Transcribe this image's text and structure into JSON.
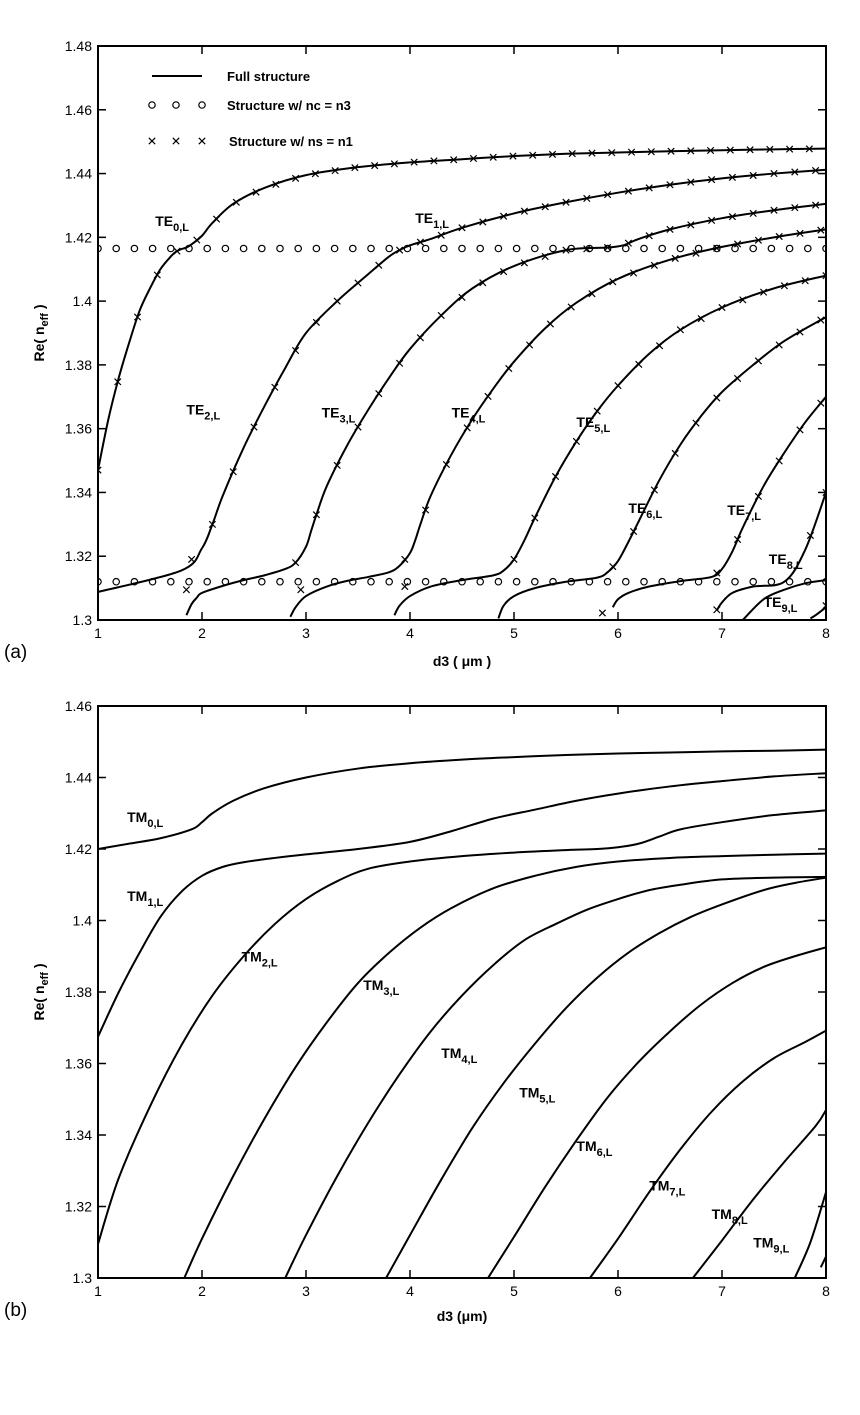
{
  "chart_data": [
    {
      "panel": "(a)",
      "type": "line",
      "xlabel": "d3 ( μm )",
      "ylabel": "Re( n",
      "ylabel_sub": "eff",
      "ylabel_close": " )",
      "xlim": [
        1,
        8
      ],
      "ylim": [
        1.3,
        1.48
      ],
      "xticks": [
        1,
        2,
        3,
        4,
        5,
        6,
        7,
        8
      ],
      "xtick_labels": [
        "1",
        "2",
        "3",
        "4",
        "5",
        "6",
        "7",
        "8"
      ],
      "yticks": [
        1.3,
        1.32,
        1.34,
        1.36,
        1.38,
        1.4,
        1.42,
        1.44,
        1.46,
        1.48
      ],
      "ytick_labels": [
        "1.3",
        "1.32",
        "1.34",
        "1.36",
        "1.38",
        "1.4",
        "1.42",
        "1.44",
        "1.46",
        "1.48"
      ],
      "legend": {
        "placement": "top-left",
        "entries": [
          {
            "label": "Full structure",
            "marker": "line"
          },
          {
            "label": "Structure w/ nc = n3",
            "marker": "circle"
          },
          {
            "label": "Structure w/ ns = n1",
            "marker": "cross"
          }
        ]
      },
      "mode_labels": [
        {
          "base": "TE",
          "sub": "0,L",
          "x": 1.55,
          "y": 1.4235
        },
        {
          "base": "TE",
          "sub": "1,L",
          "x": 4.05,
          "y": 1.4245
        },
        {
          "base": "TE",
          "sub": "2,L",
          "x": 1.85,
          "y": 1.3645
        },
        {
          "base": "TE",
          "sub": "3,L",
          "x": 3.15,
          "y": 1.3635
        },
        {
          "base": "TE",
          "sub": "4,L",
          "x": 4.4,
          "y": 1.3635
        },
        {
          "base": "TE",
          "sub": "5,L",
          "x": 5.6,
          "y": 1.3605
        },
        {
          "base": "TE",
          "sub": "6,L",
          "x": 6.1,
          "y": 1.3335
        },
        {
          "base": "TE",
          "sub": "7,L",
          "x": 7.05,
          "y": 1.333
        },
        {
          "base": "TE",
          "sub": "8,L",
          "x": 7.45,
          "y": 1.3175
        },
        {
          "base": "TE",
          "sub": "9,L",
          "x": 7.4,
          "y": 1.304
        }
      ],
      "series": [
        {
          "x": [
            1,
            1.1,
            1.2,
            1.3,
            1.4,
            1.5,
            1.6,
            1.7,
            1.75,
            1.8,
            1.85,
            1.9,
            2.0,
            2.1,
            2.3,
            2.6,
            3,
            3.5,
            4,
            4.5,
            5,
            5.5,
            6,
            6.5,
            7,
            7.5,
            8
          ],
          "y": [
            1.347,
            1.363,
            1.376,
            1.387,
            1.397,
            1.404,
            1.41,
            1.414,
            1.4155,
            1.4163,
            1.4168,
            1.4178,
            1.4205,
            1.4245,
            1.4305,
            1.4355,
            1.4395,
            1.442,
            1.4435,
            1.4445,
            1.4455,
            1.4462,
            1.4466,
            1.447,
            1.4473,
            1.4476,
            1.4478
          ]
        },
        {
          "x": [
            1,
            1.8,
            2.0,
            2.1,
            2.2,
            2.4,
            2.6,
            2.8,
            3.0,
            3.3,
            3.6,
            3.8,
            3.9,
            4.0,
            4.2,
            4.5,
            5,
            5.5,
            6,
            6.5,
            7,
            7.5,
            8
          ],
          "y": [
            1.3088,
            1.3155,
            1.3225,
            1.33,
            1.339,
            1.354,
            1.367,
            1.379,
            1.39,
            1.4,
            1.4085,
            1.414,
            1.416,
            1.4175,
            1.4195,
            1.423,
            1.4275,
            1.431,
            1.434,
            1.4365,
            1.4385,
            1.44,
            1.4412
          ]
        },
        {
          "x": [
            1.85,
            1.9,
            1.95,
            2.0,
            2.2,
            2.4,
            2.6,
            2.8,
            2.9,
            3.0,
            3.05,
            3.1,
            3.2,
            3.4,
            3.6,
            3.8,
            4.0,
            4.3,
            4.6,
            5.0,
            5.5,
            5.9,
            6.05,
            6.2,
            6.5,
            7,
            7.5,
            8
          ],
          "y": [
            1.3015,
            1.305,
            1.307,
            1.3085,
            1.3107,
            1.3125,
            1.314,
            1.316,
            1.318,
            1.323,
            1.328,
            1.333,
            1.342,
            1.355,
            1.366,
            1.376,
            1.385,
            1.3955,
            1.404,
            1.411,
            1.416,
            1.4168,
            1.4175,
            1.4195,
            1.4225,
            1.426,
            1.4285,
            1.4305
          ]
        },
        {
          "x": [
            2.85,
            2.9,
            3.0,
            3.2,
            3.4,
            3.6,
            3.8,
            3.9,
            4.0,
            4.05,
            4.1,
            4.2,
            4.4,
            4.6,
            4.8,
            5.0,
            5.3,
            5.6,
            6.0,
            6.5,
            7,
            7.5,
            8
          ],
          "y": [
            1.301,
            1.304,
            1.3075,
            1.3105,
            1.3123,
            1.3135,
            1.315,
            1.317,
            1.321,
            1.325,
            1.33,
            1.339,
            1.352,
            1.363,
            1.3725,
            1.381,
            1.3915,
            1.3995,
            1.407,
            1.413,
            1.417,
            1.42,
            1.4225
          ]
        },
        {
          "x": [
            3.85,
            3.9,
            4.0,
            4.2,
            4.5,
            4.8,
            4.9,
            5.0,
            5.1,
            5.2,
            5.4,
            5.6,
            5.8,
            6.0,
            6.3,
            6.6,
            7.0,
            7.5,
            8
          ],
          "y": [
            1.3015,
            1.3045,
            1.3075,
            1.3105,
            1.3125,
            1.314,
            1.3155,
            1.319,
            1.325,
            1.332,
            1.345,
            1.356,
            1.3655,
            1.3735,
            1.3835,
            1.391,
            1.398,
            1.404,
            1.408
          ]
        },
        {
          "x": [
            4.85,
            4.9,
            5.0,
            5.2,
            5.5,
            5.8,
            5.9,
            6.0,
            6.1,
            6.2,
            6.4,
            6.6,
            6.8,
            7.0,
            7.3,
            7.6,
            8
          ],
          "y": [
            1.3005,
            1.3045,
            1.3075,
            1.31,
            1.312,
            1.3133,
            1.315,
            1.3185,
            1.3245,
            1.331,
            1.344,
            1.355,
            1.364,
            1.3715,
            1.38,
            1.3875,
            1.395
          ]
        },
        {
          "x": [
            5.95,
            6.0,
            6.1,
            6.3,
            6.6,
            6.9,
            7.0,
            7.1,
            7.2,
            7.4,
            7.6,
            7.8,
            8
          ],
          "y": [
            1.304,
            1.3065,
            1.3085,
            1.3105,
            1.3122,
            1.3135,
            1.316,
            1.3215,
            1.329,
            1.342,
            1.3525,
            1.362,
            1.37
          ]
        },
        {
          "x": [
            6.95,
            7.0,
            7.1,
            7.3,
            7.6,
            7.8,
            8
          ],
          "y": [
            1.303,
            1.3055,
            1.3085,
            1.3105,
            1.312,
            1.322,
            1.34
          ]
        },
        {
          "x": [
            7.2,
            7.4,
            7.6,
            7.8,
            8
          ],
          "y": [
            1.3,
            1.3065,
            1.3095,
            1.3115,
            1.3125
          ]
        },
        {
          "x": [
            7.85,
            7.9,
            8
          ],
          "y": [
            1.3005,
            1.3015,
            1.304
          ]
        }
      ],
      "circle_markers": [
        {
          "y": 1.4165,
          "x_start": 1.2,
          "x_end": 8,
          "step": 0.175
        },
        {
          "y": 1.312,
          "x_start": 1.2,
          "x_end": 8,
          "step": 0.175
        }
      ],
      "cross_series": [
        {
          "x_start": 1.0,
          "x_end": 8,
          "step": 0.19,
          "series_ref": 0
        },
        {
          "x_start": 1.9,
          "x_end": 8,
          "step": 0.2,
          "series_ref": 1
        },
        {
          "x_start": 2.9,
          "x_end": 8,
          "step": 0.2,
          "series_ref": 2
        },
        {
          "x_start": 3.95,
          "x_end": 8,
          "step": 0.2,
          "series_ref": 3
        },
        {
          "x_start": 5.0,
          "x_end": 8,
          "step": 0.2,
          "series_ref": 4
        },
        {
          "x_start": 5.95,
          "x_end": 8,
          "step": 0.2,
          "series_ref": 5
        },
        {
          "x_start": 6.95,
          "x_end": 8,
          "step": 0.2,
          "series_ref": 6
        },
        {
          "x_start": 7.85,
          "x_end": 8,
          "step": 0.15,
          "series_ref": 7
        }
      ],
      "extra_crosses": [
        {
          "x": 1.85,
          "y": 1.3095
        },
        {
          "x": 2.95,
          "y": 1.3095
        },
        {
          "x": 3.95,
          "y": 1.3105
        },
        {
          "x": 5.85,
          "y": 1.3022
        },
        {
          "x": 6.95,
          "y": 1.3032
        },
        {
          "x": 8.0,
          "y": 1.3045
        }
      ]
    },
    {
      "panel": "(b)",
      "type": "line",
      "xlabel": "d3 (μm)",
      "ylabel": "Re( n",
      "ylabel_sub": "eff",
      "ylabel_close": " )",
      "xlim": [
        1,
        8
      ],
      "ylim": [
        1.3,
        1.46
      ],
      "xticks": [
        1,
        2,
        3,
        4,
        5,
        6,
        7,
        8
      ],
      "xtick_labels": [
        "1",
        "2",
        "3",
        "4",
        "5",
        "6",
        "7",
        "8"
      ],
      "yticks": [
        1.3,
        1.32,
        1.34,
        1.36,
        1.38,
        1.4,
        1.42,
        1.44,
        1.46
      ],
      "ytick_labels": [
        "1.3",
        "1.32",
        "1.34",
        "1.36",
        "1.38",
        "1.4",
        "1.42",
        "1.44",
        "1.46"
      ],
      "mode_labels": [
        {
          "base": "TM",
          "sub": "0,L",
          "x": 1.28,
          "y": 1.4275
        },
        {
          "base": "TM",
          "sub": "1,L",
          "x": 1.28,
          "y": 1.4055
        },
        {
          "base": "TM",
          "sub": "2,L",
          "x": 2.38,
          "y": 1.3885
        },
        {
          "base": "TM",
          "sub": "3,L",
          "x": 3.55,
          "y": 1.3805
        },
        {
          "base": "TM",
          "sub": "4,L",
          "x": 4.3,
          "y": 1.3615
        },
        {
          "base": "TM",
          "sub": "5,L",
          "x": 5.05,
          "y": 1.3505
        },
        {
          "base": "TM",
          "sub": "6,L",
          "x": 5.6,
          "y": 1.3355
        },
        {
          "base": "TM",
          "sub": "7,L",
          "x": 6.3,
          "y": 1.3245
        },
        {
          "base": "TM",
          "sub": "8,L",
          "x": 6.9,
          "y": 1.3165
        },
        {
          "base": "TM",
          "sub": "9,L",
          "x": 7.3,
          "y": 1.3085
        }
      ],
      "series": [
        {
          "x": [
            1,
            1.3,
            1.6,
            1.9,
            2.0,
            2.1,
            2.3,
            2.6,
            3,
            3.5,
            4,
            4.5,
            5,
            5.5,
            6,
            6.5,
            7,
            7.5,
            8
          ],
          "y": [
            1.42,
            1.4215,
            1.423,
            1.4255,
            1.4275,
            1.43,
            1.4335,
            1.437,
            1.44,
            1.4425,
            1.444,
            1.445,
            1.4457,
            1.4463,
            1.4467,
            1.447,
            1.4473,
            1.4475,
            1.4478
          ]
        },
        {
          "x": [
            1,
            1.2,
            1.4,
            1.6,
            1.8,
            2.0,
            2.2,
            2.4,
            2.7,
            3.0,
            3.5,
            4.0,
            4.4,
            4.8,
            5.2,
            5.6,
            6.0,
            6.5,
            7,
            7.5,
            8
          ],
          "y": [
            1.3675,
            1.38,
            1.391,
            1.401,
            1.408,
            1.4125,
            1.415,
            1.4163,
            1.4175,
            1.4185,
            1.42,
            1.422,
            1.425,
            1.4285,
            1.431,
            1.4335,
            1.4355,
            1.4375,
            1.439,
            1.4403,
            1.4412
          ]
        },
        {
          "x": [
            1,
            1.2,
            1.5,
            1.8,
            2.1,
            2.4,
            2.7,
            3.0,
            3.3,
            3.6,
            4.0,
            4.5,
            5.0,
            5.5,
            5.8,
            6.0,
            6.2,
            6.4,
            6.6,
            7.0,
            7.5,
            8
          ],
          "y": [
            1.3095,
            1.328,
            1.348,
            1.365,
            1.379,
            1.39,
            1.399,
            1.406,
            1.411,
            1.4145,
            1.4165,
            1.418,
            1.419,
            1.4197,
            1.42,
            1.4205,
            1.4215,
            1.4235,
            1.4255,
            1.4275,
            1.4295,
            1.4308
          ]
        },
        {
          "x": [
            1.83,
            2.0,
            2.3,
            2.6,
            2.9,
            3.2,
            3.5,
            3.8,
            4.1,
            4.4,
            4.8,
            5.2,
            5.6,
            6.0,
            6.5,
            7.0,
            7.5,
            8
          ],
          "y": [
            1.3,
            1.311,
            1.3285,
            1.3445,
            1.359,
            1.3715,
            1.3825,
            1.391,
            1.398,
            1.4035,
            1.409,
            1.4125,
            1.415,
            1.4165,
            1.4175,
            1.418,
            1.4184,
            1.4187
          ]
        },
        {
          "x": [
            2.8,
            3.0,
            3.3,
            3.6,
            3.9,
            4.2,
            4.5,
            4.8,
            5.1,
            5.4,
            5.7,
            6.0,
            6.3,
            6.6,
            7.0,
            7.5,
            8
          ],
          "y": [
            1.3,
            1.312,
            1.3285,
            1.3435,
            1.357,
            1.369,
            1.379,
            1.3875,
            1.3945,
            1.399,
            1.403,
            1.406,
            1.4085,
            1.41,
            1.4115,
            1.412,
            1.4122
          ]
        },
        {
          "x": [
            3.77,
            4.0,
            4.3,
            4.6,
            4.9,
            5.2,
            5.5,
            5.8,
            6.1,
            6.4,
            6.7,
            7.0,
            7.4,
            7.7,
            8
          ],
          "y": [
            1.3,
            1.312,
            1.3275,
            1.342,
            1.3545,
            1.3655,
            1.3755,
            1.384,
            1.391,
            1.3965,
            1.401,
            1.4045,
            1.4085,
            1.4105,
            1.412
          ]
        },
        {
          "x": [
            4.75,
            5.0,
            5.3,
            5.6,
            5.9,
            6.2,
            6.5,
            6.8,
            7.1,
            7.4,
            7.7,
            8
          ],
          "y": [
            1.3,
            1.3115,
            1.3255,
            1.3385,
            1.3505,
            1.3605,
            1.369,
            1.3765,
            1.3825,
            1.387,
            1.39,
            1.3925
          ]
        },
        {
          "x": [
            5.73,
            6.0,
            6.3,
            6.6,
            6.9,
            7.2,
            7.5,
            7.8,
            8
          ],
          "y": [
            1.3,
            1.311,
            1.324,
            1.336,
            1.3465,
            1.355,
            1.3615,
            1.366,
            1.3692
          ]
        },
        {
          "x": [
            6.72,
            7.0,
            7.3,
            7.6,
            7.9,
            8
          ],
          "y": [
            1.3,
            1.3105,
            1.322,
            1.3325,
            1.3425,
            1.347
          ]
        },
        {
          "x": [
            7.7,
            7.85,
            8
          ],
          "y": [
            1.3,
            1.31,
            1.324
          ]
        },
        {
          "x": [
            7.95,
            8
          ],
          "y": [
            1.303,
            1.306
          ]
        }
      ]
    }
  ]
}
